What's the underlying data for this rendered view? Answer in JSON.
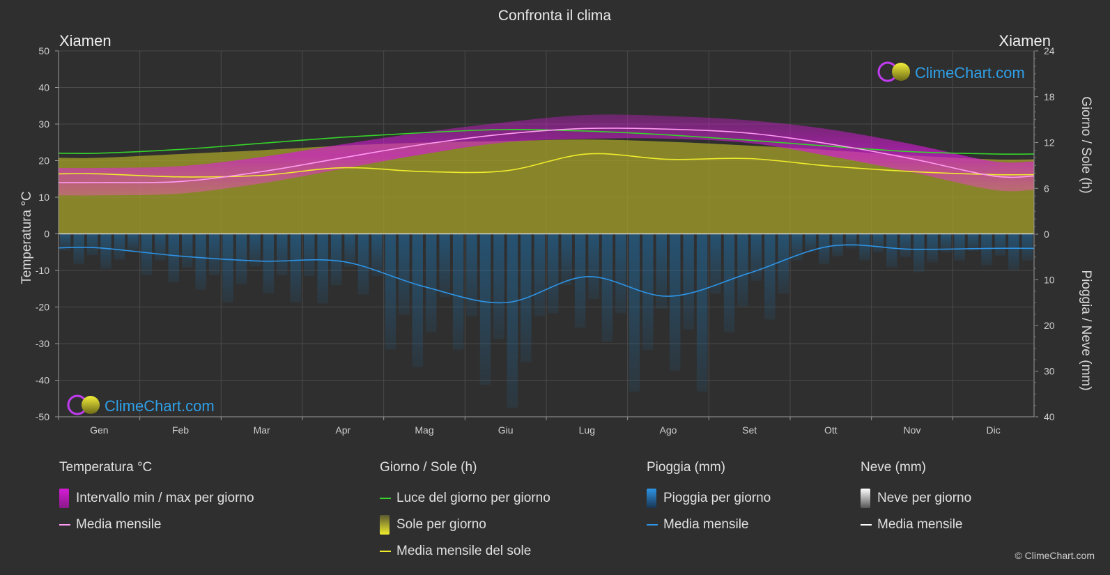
{
  "title": "Confronta il clima",
  "city_left": "Xiamen",
  "city_right": "Xiamen",
  "watermark": "ClimeChart.com",
  "copyright": "© ClimeChart.com",
  "colors": {
    "bg": "#2f2f2f",
    "temp_range": "#d41bd4",
    "temp_mean": "#ff9cf2",
    "daylight": "#36d42a",
    "sun_fill": "#a6a22a",
    "sun_mean": "#f0ec2c",
    "rain": "#1e6fa8",
    "rain_mean": "#2e94e6",
    "snow_mean": "#ffffff",
    "brand": "#2fa0e8"
  },
  "legend": {
    "temperature": {
      "title": "Temperatura °C",
      "range_label": "Intervallo min / max per giorno",
      "mean_label": "Media mensile"
    },
    "sun": {
      "title": "Giorno / Sole (h)",
      "daylight_label": "Luce del giorno per giorno",
      "sun_label": "Sole per giorno",
      "sun_mean_label": "Media mensile del sole"
    },
    "rain": {
      "title": "Pioggia (mm)",
      "rain_label": "Pioggia per giorno",
      "mean_label": "Media mensile"
    },
    "snow": {
      "title": "Neve (mm)",
      "snow_label": "Neve per giorno",
      "mean_label": "Media mensile"
    }
  },
  "chart_data": {
    "type": "area",
    "categories": [
      "Gen",
      "Feb",
      "Mar",
      "Apr",
      "Mag",
      "Giu",
      "Lug",
      "Ago",
      "Set",
      "Ott",
      "Nov",
      "Dic"
    ],
    "y_left": {
      "label": "Temperatura °C",
      "ticks": [
        50,
        40,
        30,
        20,
        10,
        0,
        -10,
        -20,
        -30,
        -40,
        -50
      ],
      "range": [
        -50,
        50
      ]
    },
    "y_right_top": {
      "label": "Giorno / Sole (h)",
      "ticks": [
        24,
        18,
        12,
        6,
        0
      ],
      "range": [
        0,
        24
      ]
    },
    "y_right_bottom": {
      "label": "Pioggia / Neve (mm)",
      "ticks": [
        0,
        10,
        20,
        30,
        40
      ],
      "range": [
        0,
        40
      ]
    },
    "grid": true,
    "series": [
      {
        "name": "Media mensile",
        "unit": "°C",
        "values": [
          14.0,
          14.3,
          17.0,
          20.8,
          24.5,
          27.3,
          28.8,
          28.6,
          27.5,
          24.5,
          20.5,
          15.8
        ]
      },
      {
        "name": "Intervallo min / max per giorno (min)",
        "unit": "°C",
        "values": [
          10.5,
          11.0,
          13.8,
          17.8,
          21.8,
          25.0,
          26.0,
          26.0,
          24.8,
          21.2,
          16.8,
          12.0
        ]
      },
      {
        "name": "Intervallo min / max per giorno (max)",
        "unit": "°C",
        "values": [
          18.0,
          18.5,
          21.0,
          24.5,
          27.8,
          30.5,
          32.5,
          32.2,
          31.0,
          28.5,
          24.5,
          19.8
        ]
      },
      {
        "name": "Luce del giorno per giorno",
        "unit": "h",
        "values": [
          10.6,
          11.1,
          11.9,
          12.7,
          13.3,
          13.7,
          13.5,
          13.0,
          12.3,
          11.5,
          10.8,
          10.5
        ]
      },
      {
        "name": "Sole per giorno",
        "unit": "h",
        "values": [
          10.0,
          10.5,
          11.0,
          11.6,
          12.0,
          12.2,
          12.4,
          12.1,
          11.6,
          11.0,
          10.3,
          9.8
        ]
      },
      {
        "name": "Media mensile del sole",
        "unit": "h",
        "values": [
          7.9,
          7.5,
          7.7,
          8.7,
          8.2,
          8.3,
          10.5,
          9.8,
          9.9,
          8.9,
          8.2,
          7.8
        ]
      },
      {
        "name": "Pioggia - Media mensile",
        "unit": "mm",
        "values": [
          3.0,
          4.8,
          5.9,
          6.0,
          11.5,
          15.0,
          9.3,
          13.6,
          8.5,
          2.6,
          3.3,
          3.1
        ]
      },
      {
        "name": "Neve - Media mensile",
        "unit": "mm",
        "values": [
          0,
          0,
          0,
          0,
          0,
          0,
          0,
          0,
          0,
          0,
          0,
          0
        ]
      }
    ]
  }
}
